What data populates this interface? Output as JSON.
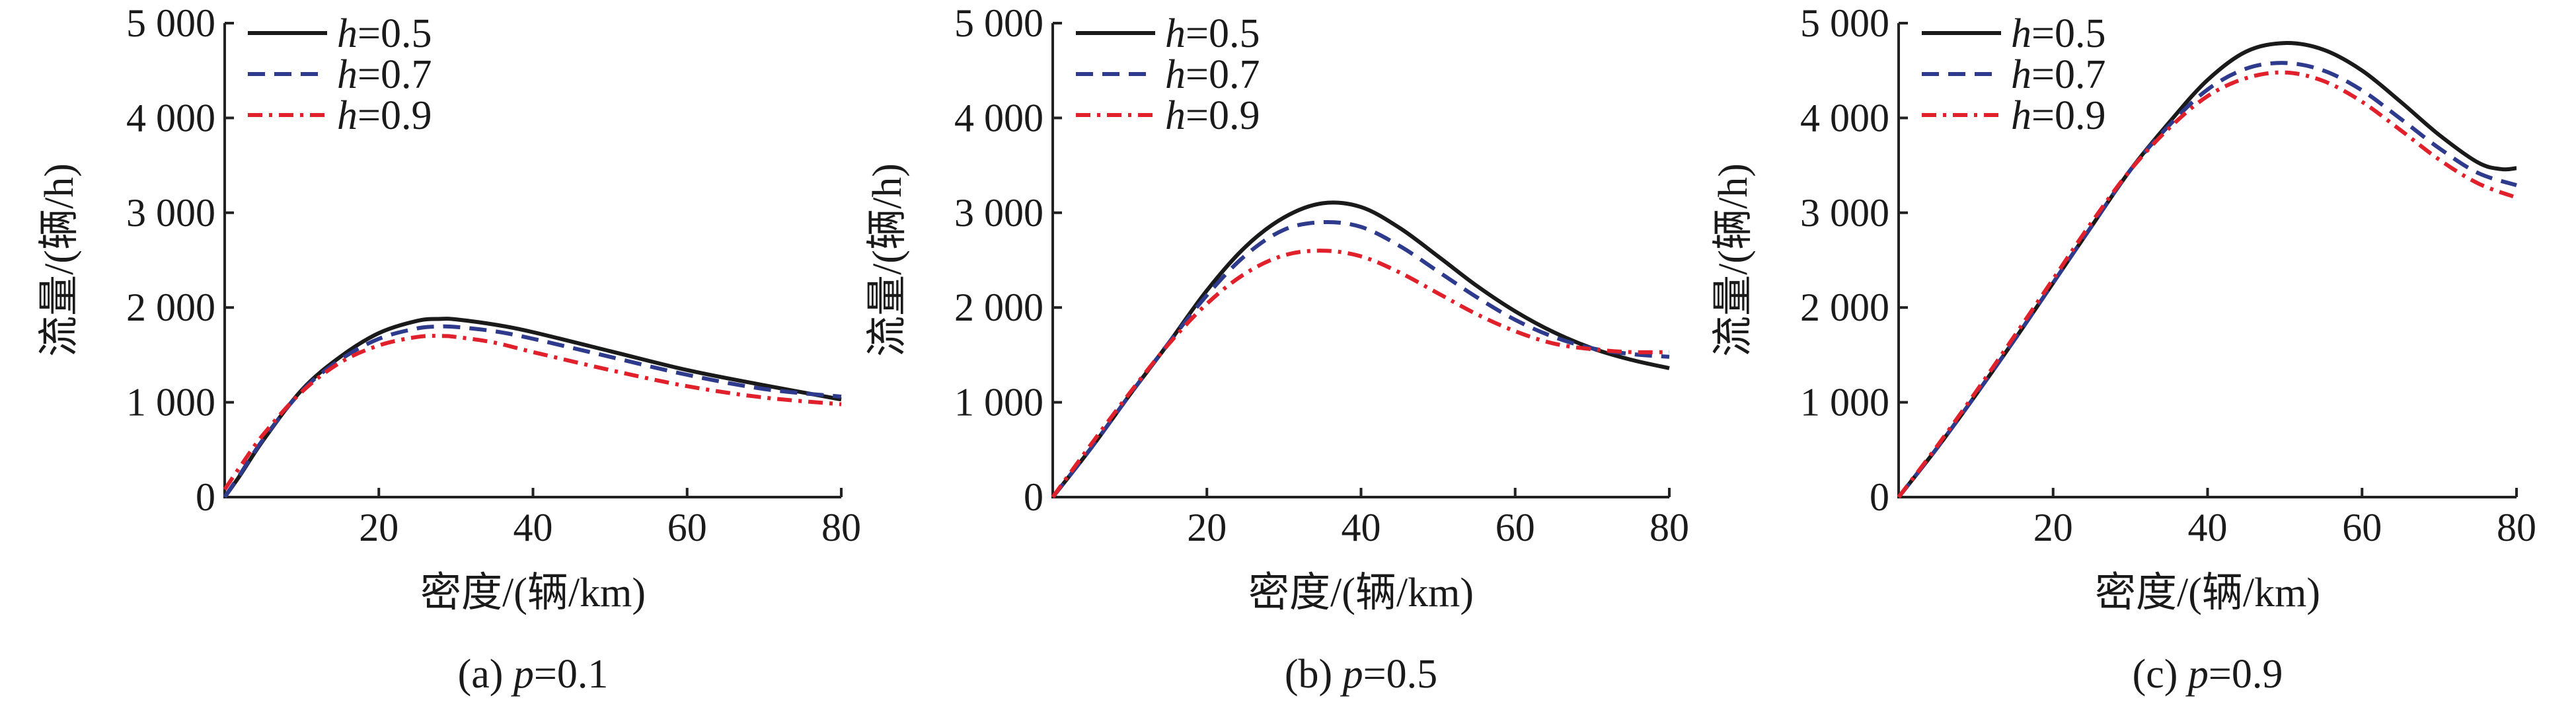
{
  "chart_data": [
    {
      "type": "line",
      "caption": "(a) p=0.1",
      "xlabel": "密度/(辆/km)",
      "ylabel": "流量/(辆/h)",
      "xlim": [
        0,
        80
      ],
      "ylim": [
        0,
        5000
      ],
      "xticks": [
        "20",
        "40",
        "60",
        "80"
      ],
      "yticks": [
        "0",
        "1 000",
        "2 000",
        "3 000",
        "4 000",
        "5 000"
      ],
      "legend_position": "top-left",
      "series": [
        {
          "name": "h=0.5",
          "color": "#1a1a1a",
          "style": "solid",
          "x": [
            0,
            2,
            5,
            10,
            15,
            20,
            25,
            28,
            30,
            35,
            40,
            50,
            60,
            70,
            80
          ],
          "y": [
            0,
            230,
            600,
            1130,
            1480,
            1730,
            1860,
            1880,
            1875,
            1820,
            1740,
            1540,
            1340,
            1180,
            1030
          ]
        },
        {
          "name": "h=0.7",
          "color": "#2e3a8c",
          "style": "dash",
          "x": [
            0,
            2,
            5,
            10,
            15,
            20,
            25,
            28,
            30,
            35,
            40,
            50,
            60,
            70,
            80
          ],
          "y": [
            0,
            240,
            610,
            1120,
            1450,
            1670,
            1780,
            1800,
            1795,
            1750,
            1670,
            1480,
            1290,
            1140,
            1060
          ]
        },
        {
          "name": "h=0.9",
          "color": "#e0202a",
          "style": "dashdot",
          "x": [
            0,
            2,
            5,
            10,
            15,
            20,
            25,
            28,
            30,
            35,
            40,
            50,
            60,
            70,
            80
          ],
          "y": [
            80,
            320,
            660,
            1110,
            1420,
            1600,
            1690,
            1700,
            1690,
            1630,
            1530,
            1340,
            1170,
            1050,
            980
          ]
        }
      ]
    },
    {
      "type": "line",
      "caption": "(b) p=0.5",
      "xlabel": "密度/(辆/km)",
      "ylabel": "流量/(辆/h)",
      "xlim": [
        0,
        80
      ],
      "ylim": [
        0,
        5000
      ],
      "xticks": [
        "20",
        "40",
        "60",
        "80"
      ],
      "yticks": [
        "0",
        "1 000",
        "2 000",
        "3 000",
        "4 000",
        "5 000"
      ],
      "legend_position": "top-left",
      "series": [
        {
          "name": "h=0.5",
          "color": "#1a1a1a",
          "style": "solid",
          "x": [
            0,
            5,
            10,
            15,
            20,
            25,
            30,
            35,
            40,
            45,
            50,
            55,
            60,
            65,
            70,
            75,
            80
          ],
          "y": [
            0,
            520,
            1080,
            1620,
            2180,
            2640,
            2950,
            3100,
            3060,
            2840,
            2540,
            2230,
            1960,
            1740,
            1570,
            1450,
            1360
          ]
        },
        {
          "name": "h=0.7",
          "color": "#2e3a8c",
          "style": "dash",
          "x": [
            0,
            5,
            10,
            15,
            20,
            25,
            30,
            35,
            40,
            45,
            50,
            55,
            60,
            65,
            70,
            75,
            80
          ],
          "y": [
            0,
            520,
            1080,
            1620,
            2130,
            2550,
            2820,
            2900,
            2850,
            2650,
            2380,
            2110,
            1870,
            1690,
            1570,
            1510,
            1480
          ]
        },
        {
          "name": "h=0.9",
          "color": "#e0202a",
          "style": "dashdot",
          "x": [
            0,
            5,
            10,
            15,
            20,
            25,
            30,
            35,
            40,
            45,
            50,
            55,
            60,
            65,
            70,
            75,
            80
          ],
          "y": [
            0,
            560,
            1100,
            1610,
            2040,
            2360,
            2550,
            2600,
            2540,
            2370,
            2150,
            1930,
            1750,
            1620,
            1560,
            1530,
            1530
          ]
        }
      ]
    },
    {
      "type": "line",
      "caption": "(c) p=0.9",
      "xlabel": "密度/(辆/km)",
      "ylabel": "流量/(辆/h)",
      "xlim": [
        0,
        80
      ],
      "ylim": [
        0,
        5000
      ],
      "xticks": [
        "20",
        "40",
        "60",
        "80"
      ],
      "yticks": [
        "0",
        "1 000",
        "2 000",
        "3 000",
        "4 000",
        "5 000"
      ],
      "legend_position": "top-left",
      "series": [
        {
          "name": "h=0.5",
          "color": "#1a1a1a",
          "style": "solid",
          "x": [
            0,
            5,
            10,
            15,
            20,
            25,
            30,
            35,
            40,
            45,
            50,
            55,
            60,
            65,
            70,
            75,
            78,
            80
          ],
          "y": [
            0,
            520,
            1080,
            1660,
            2260,
            2860,
            3450,
            3950,
            4400,
            4700,
            4790,
            4720,
            4500,
            4170,
            3820,
            3530,
            3460,
            3470
          ]
        },
        {
          "name": "h=0.7",
          "color": "#2e3a8c",
          "style": "dash",
          "x": [
            0,
            5,
            10,
            15,
            20,
            25,
            30,
            35,
            40,
            45,
            50,
            55,
            60,
            65,
            70,
            75,
            80
          ],
          "y": [
            0,
            520,
            1080,
            1660,
            2260,
            2860,
            3450,
            3920,
            4300,
            4520,
            4580,
            4500,
            4290,
            3990,
            3680,
            3420,
            3290
          ]
        },
        {
          "name": "h=0.9",
          "color": "#e0202a",
          "style": "dashdot",
          "x": [
            0,
            5,
            10,
            15,
            20,
            25,
            30,
            35,
            40,
            45,
            50,
            55,
            60,
            65,
            70,
            75,
            80
          ],
          "y": [
            0,
            540,
            1110,
            1700,
            2300,
            2900,
            3450,
            3890,
            4230,
            4420,
            4480,
            4390,
            4170,
            3870,
            3560,
            3310,
            3160
          ]
        }
      ]
    }
  ]
}
